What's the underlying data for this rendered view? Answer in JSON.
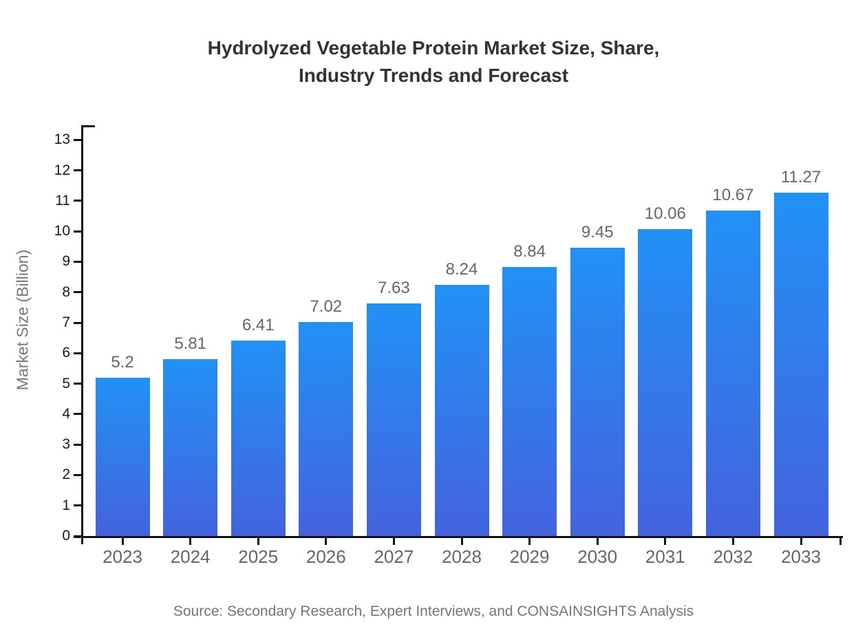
{
  "title": {
    "line1": "Hydrolyzed Vegetable Protein Market Size, Share,",
    "line2": "Industry Trends and Forecast"
  },
  "source": {
    "text": "Source: Secondary Research, Expert Interviews, and CONSAINSIGHTS Analysis"
  },
  "colors": {
    "bar_gradient_top": "#2191f5",
    "bar_gradient_bottom": "#4463de",
    "axis": "#111111",
    "title_text": "#333333",
    "ytick_text": "#1a1a1a",
    "muted_text": "#666666",
    "source_text": "#757575",
    "background": "#ffffff"
  },
  "chart_data": {
    "type": "bar",
    "title": "Hydrolyzed Vegetable Protein Market Size, Share, Industry Trends and Forecast",
    "categories": [
      "2023",
      "2024",
      "2025",
      "2026",
      "2027",
      "2028",
      "2029",
      "2030",
      "2031",
      "2032",
      "2033"
    ],
    "values": [
      5.2,
      5.81,
      6.41,
      7.02,
      7.63,
      8.24,
      8.84,
      9.45,
      10.06,
      10.67,
      11.27
    ],
    "data_labels": [
      "5.2",
      "5.81",
      "6.41",
      "7.02",
      "7.63",
      "8.24",
      "8.84",
      "9.45",
      "10.06",
      "10.67",
      "11.27"
    ],
    "xlabel": "",
    "ylabel": "Market Size (Billion)",
    "ylim": [
      0,
      13.48
    ],
    "y_ticks": [
      0,
      1,
      2,
      3,
      4,
      5,
      6,
      7,
      8,
      9,
      10,
      11,
      12,
      13
    ],
    "grid": false,
    "legend": null,
    "bar_value_labels_shown": true
  }
}
